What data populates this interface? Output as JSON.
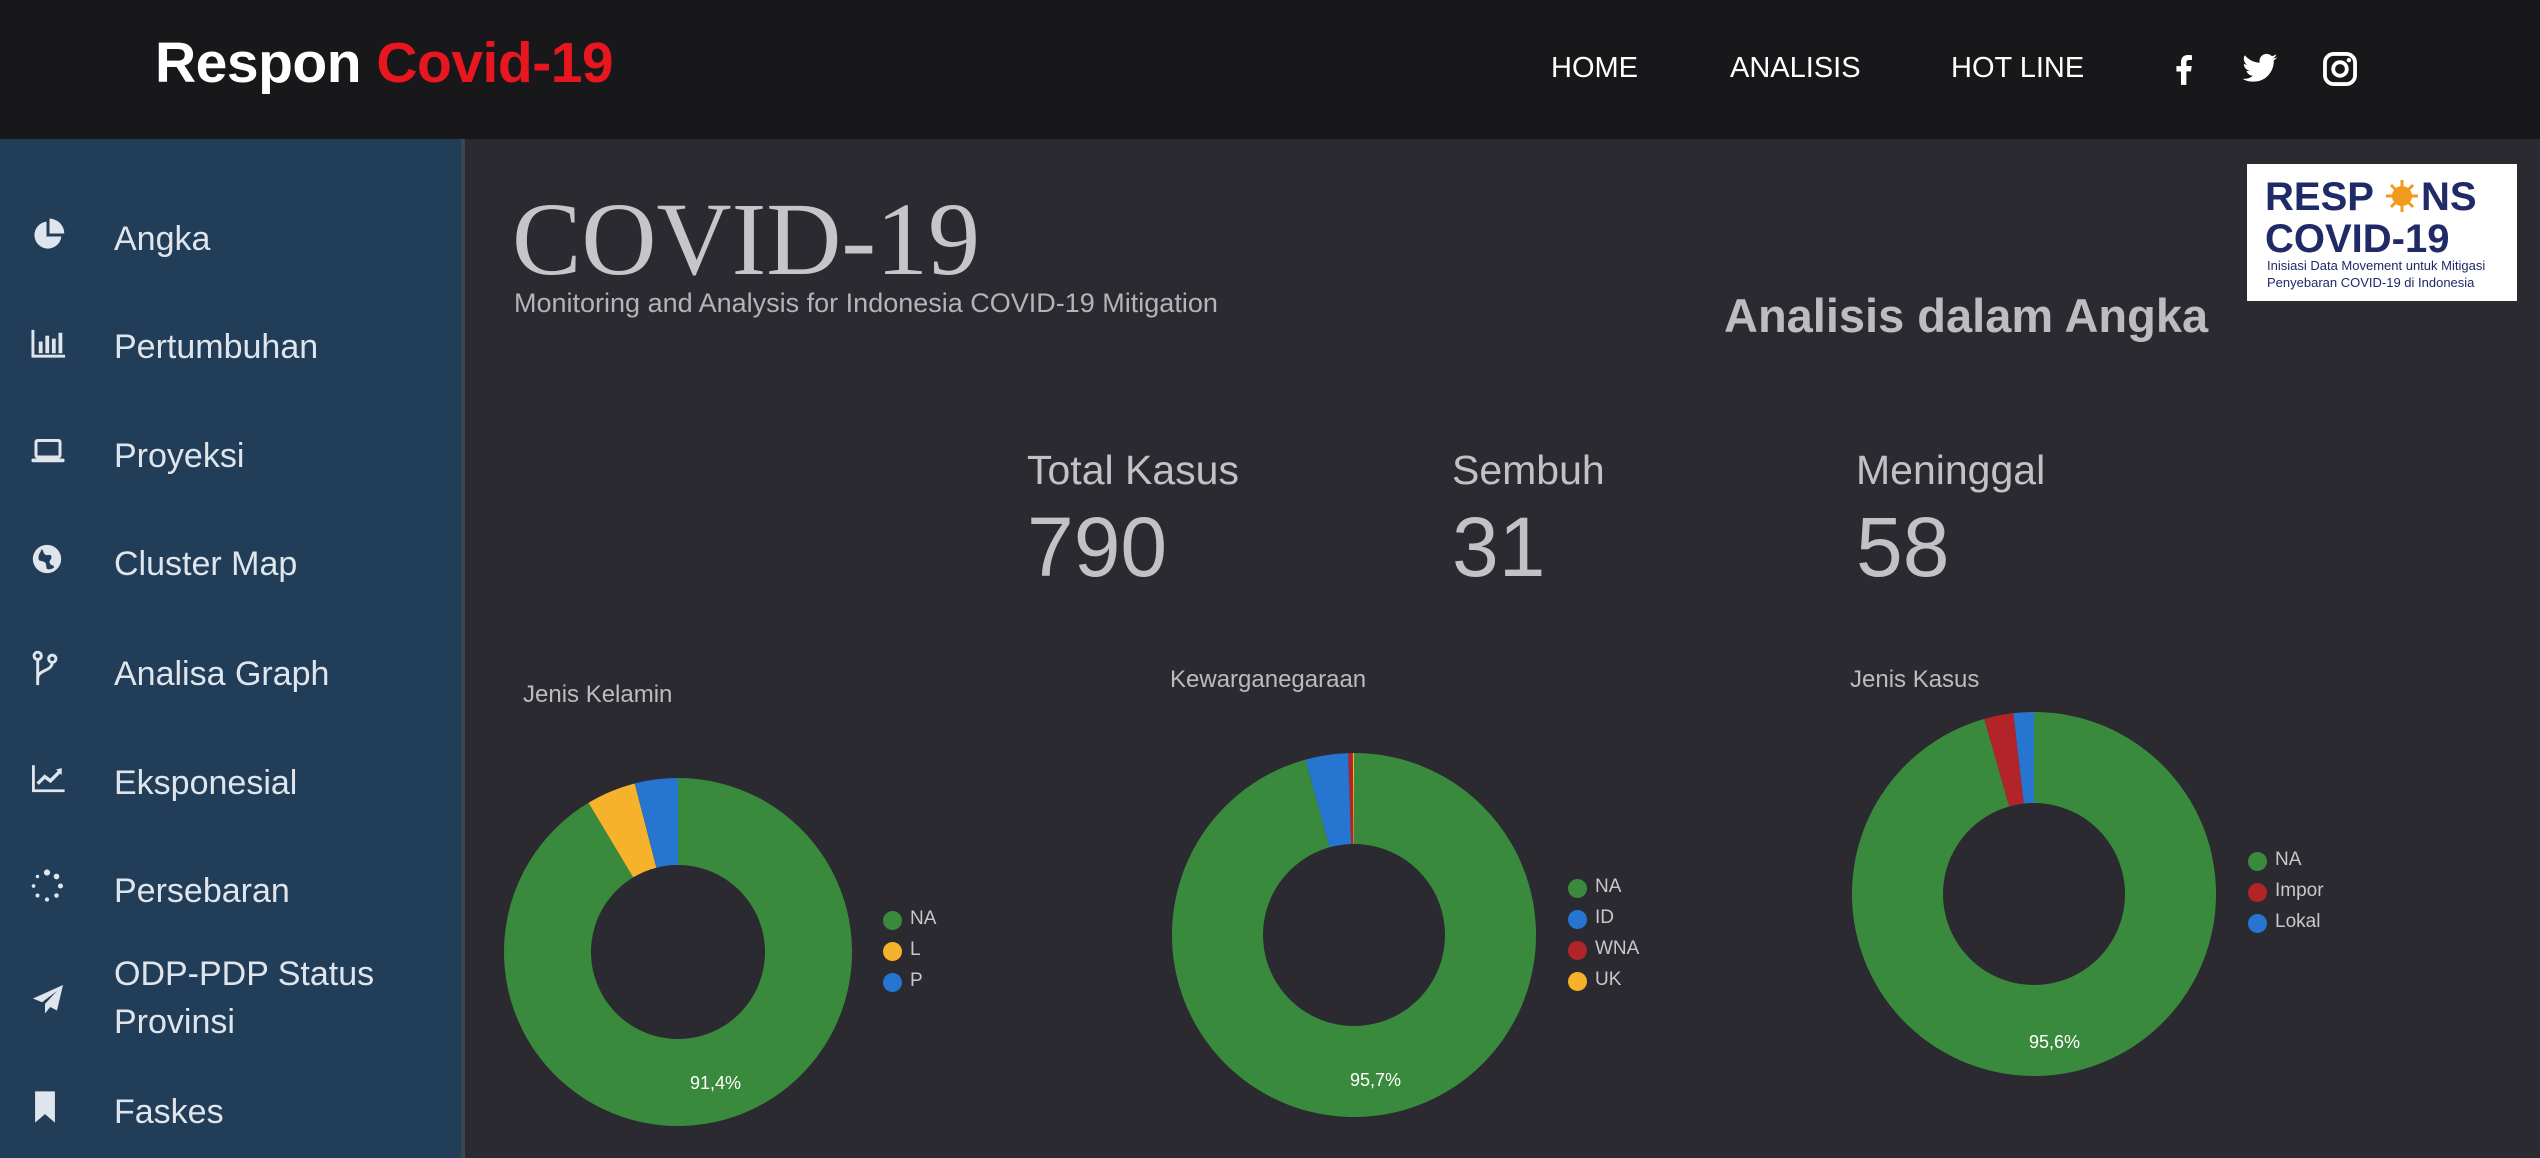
{
  "header": {
    "brand_prefix": "Respon",
    "brand_accent": "Covid-19",
    "nav": [
      "HOME",
      "ANALISIS",
      "HOT LINE"
    ],
    "social_icons": [
      "facebook-icon",
      "twitter-icon",
      "instagram-icon"
    ]
  },
  "sidebar": {
    "items": [
      {
        "label": "Angka",
        "icon": "pie-chart-icon"
      },
      {
        "label": "Pertumbuhan",
        "icon": "bar-chart-icon"
      },
      {
        "label": "Proyeksi",
        "icon": "laptop-icon"
      },
      {
        "label": "Cluster Map",
        "icon": "globe-icon"
      },
      {
        "label": "Analisa Graph",
        "icon": "git-branch-icon"
      },
      {
        "label": "Eksponesial",
        "icon": "line-chart-icon"
      },
      {
        "label": "Persebaran",
        "icon": "spinner-icon"
      },
      {
        "label": "ODP-PDP Status",
        "label2": "Provinsi",
        "icon": "paper-plane-icon"
      },
      {
        "label": "Faskes",
        "icon": "bookmark-icon"
      }
    ]
  },
  "main": {
    "title": "COVID-19",
    "subtitle": "Monitoring and Analysis for Indonesia COVID-19 Mitigation",
    "section_title": "Analisis dalam Angka",
    "logo": {
      "line1a": "RESP",
      "line1b": "NS",
      "line2": "COVID-19",
      "line3": "Inisiasi Data Movement untuk Mitigasi",
      "line4": "Penyebaran COVID-19 di Indonesia"
    },
    "stats": [
      {
        "label": "Total Kasus",
        "value": "790"
      },
      {
        "label": "Sembuh",
        "value": "31"
      },
      {
        "label": "Meninggal",
        "value": "58"
      }
    ]
  },
  "colors": {
    "topbar": "#18181b",
    "brand_accent": "#e8161f",
    "sidebar": "#223d58",
    "content_bg": "#2b2a30",
    "green": "#3a8a3d",
    "yellow": "#f6b22b",
    "blue": "#2676d1",
    "red": "#b3232a"
  },
  "chart_data": [
    {
      "type": "pie",
      "title": "Jenis Kelamin",
      "slices": [
        {
          "name": "NA",
          "value": 91.4,
          "color": "#3a8a3d"
        },
        {
          "name": "L",
          "value": 4.6,
          "color": "#f6b22b"
        },
        {
          "name": "P",
          "value": 4.0,
          "color": "#2676d1"
        }
      ],
      "label": "91,4%",
      "legend": "right"
    },
    {
      "type": "pie",
      "title": "Kewarganegaraan",
      "slices": [
        {
          "name": "NA",
          "value": 95.7,
          "color": "#3a8a3d"
        },
        {
          "name": "ID",
          "value": 3.8,
          "color": "#2676d1"
        },
        {
          "name": "WNA",
          "value": 0.4,
          "color": "#b3232a"
        },
        {
          "name": "UK",
          "value": 0.1,
          "color": "#f6b22b"
        }
      ],
      "label": "95,7%",
      "legend": "right"
    },
    {
      "type": "pie",
      "title": "Jenis Kasus",
      "slices": [
        {
          "name": "NA",
          "value": 95.6,
          "color": "#3a8a3d"
        },
        {
          "name": "Impor",
          "value": 2.6,
          "color": "#b3232a"
        },
        {
          "name": "Lokal",
          "value": 1.8,
          "color": "#2676d1"
        }
      ],
      "label": "95,6%",
      "legend": "right"
    }
  ]
}
